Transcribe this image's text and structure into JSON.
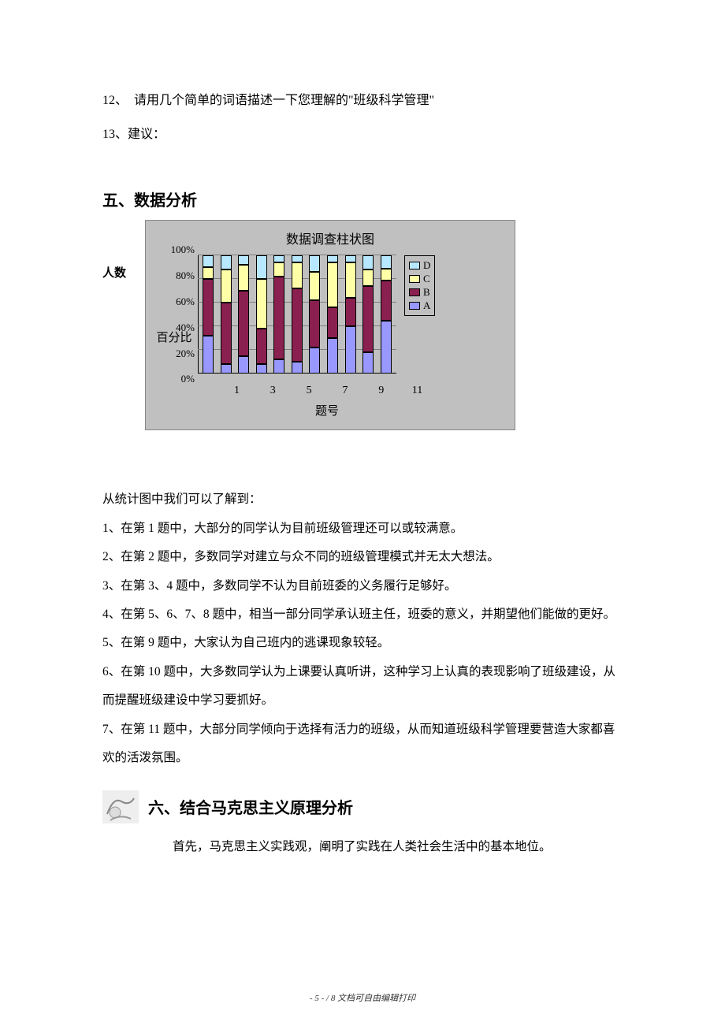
{
  "questions": {
    "q12": "12、　请用几个简单的词语描述一下您理解的\"班级科学管理\"",
    "q13": "13、建议："
  },
  "section5": {
    "heading": "五、数据分析",
    "outside_ylabel": "人数",
    "chart": {
      "type": "stacked-bar",
      "title": "数据调查柱状图",
      "ylabel": "百分比",
      "xlabel": "题号",
      "ylim": [
        0,
        100
      ],
      "ytick_step": 20,
      "yticks": [
        "100%",
        "80%",
        "60%",
        "40%",
        "20%",
        "0%"
      ],
      "categories": [
        "1",
        "2",
        "3",
        "4",
        "5",
        "6",
        "7",
        "8",
        "9",
        "10",
        "11"
      ],
      "xtick_labels_shown": [
        "1",
        "3",
        "5",
        "7",
        "9",
        "11"
      ],
      "series_order": [
        "A",
        "B",
        "C",
        "D"
      ],
      "series_colors": {
        "A": "#9898ff",
        "B": "#8a2050",
        "C": "#ffffa8",
        "D": "#b8e8ff"
      },
      "background_color": "#c0c0c0",
      "grid_color": "#808080",
      "bar_border": "#000000",
      "data": [
        {
          "A": 32,
          "B": 48,
          "C": 10,
          "D": 10
        },
        {
          "A": 8,
          "B": 52,
          "C": 28,
          "D": 12
        },
        {
          "A": 15,
          "B": 55,
          "C": 22,
          "D": 8
        },
        {
          "A": 8,
          "B": 30,
          "C": 42,
          "D": 20
        },
        {
          "A": 12,
          "B": 70,
          "C": 12,
          "D": 6
        },
        {
          "A": 10,
          "B": 62,
          "C": 22,
          "D": 6
        },
        {
          "A": 22,
          "B": 40,
          "C": 24,
          "D": 14
        },
        {
          "A": 30,
          "B": 26,
          "C": 38,
          "D": 6
        },
        {
          "A": 40,
          "B": 24,
          "C": 30,
          "D": 6
        },
        {
          "A": 18,
          "B": 56,
          "C": 14,
          "D": 12
        },
        {
          "A": 45,
          "B": 34,
          "C": 10,
          "D": 11
        }
      ],
      "legend": [
        {
          "label": "D",
          "color": "#b8e8ff"
        },
        {
          "label": "C",
          "color": "#ffffa8"
        },
        {
          "label": "B",
          "color": "#8a2050"
        },
        {
          "label": "A",
          "color": "#9898ff"
        }
      ]
    },
    "analysis_intro": "从统计图中我们可以了解到：",
    "analysis_points": [
      "1、在第 1 题中，大部分的同学认为目前班级管理还可以或较满意。",
      "2、在第 2 题中，多数同学对建立与众不同的班级管理模式并无太大想法。",
      "3、在第 3、4 题中，多数同学不认为目前班委的义务履行足够好。",
      "4、在第 5、6、7、8 题中，相当一部分同学承认班主任，班委的意义，并期望他们能做的更好。",
      "5、在第 9 题中，大家认为自己班内的逃课现象较轻。",
      "6、在第 10 题中，大多数同学认为上课要认真听讲，这种学习上认真的表现影响了班级建设，从而提醒班级建设中学习要抓好。",
      "7、在第 11 题中，大部分同学倾向于选择有活力的班级，从而知道班级科学管理要营造大家都喜欢的活泼氛围。"
    ]
  },
  "section6": {
    "heading": "六、结合马克思主义原理分析",
    "para1": "首先，马克思主义实践观，阐明了实践在人类社会生活中的基本地位。"
  },
  "footer": {
    "page_current": "5",
    "page_total": "8",
    "suffix": "文档可自由编辑打印"
  }
}
